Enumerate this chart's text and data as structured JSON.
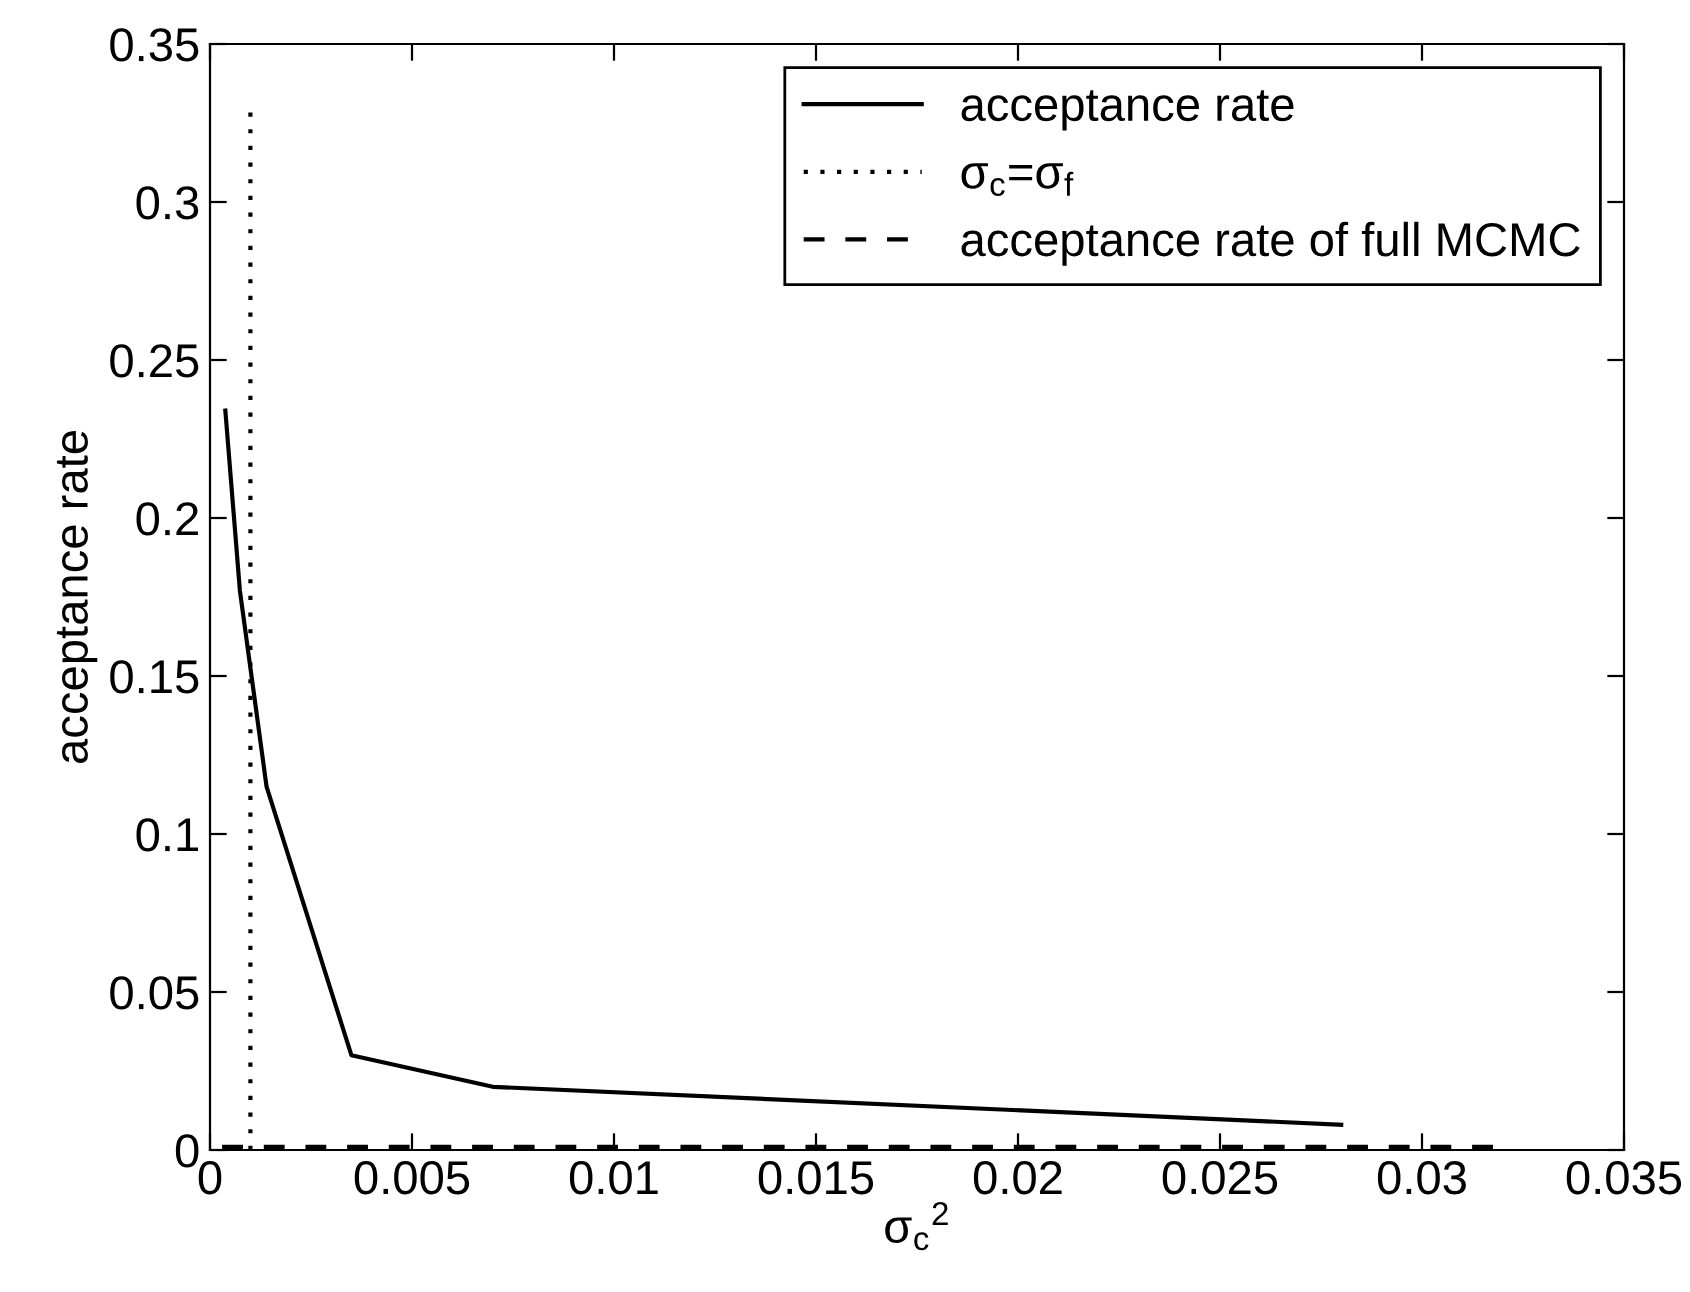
{
  "chart_data": {
    "type": "line",
    "xlabel": "σ$_{c}$$^{2}$",
    "ylabel": "acceptance rate",
    "series": [
      {
        "name": "acceptance rate",
        "color": "#000000",
        "line_style": "solid",
        "x": [
          0.00038,
          0.00074,
          0.0014,
          0.0035,
          0.007,
          0.028
        ],
        "values": [
          0.234,
          0.177,
          0.115,
          0.03,
          0.02,
          0.008
        ]
      },
      {
        "name": "σ$_{c}$=σ$_{f}$",
        "color": "#000000",
        "line_style": "dotted",
        "x": [
          0.001,
          0.001
        ],
        "values": [
          0,
          0.33
        ]
      },
      {
        "name": "acceptance rate of full MCMC",
        "color": "#000000",
        "line_style": "dashed",
        "x": [
          0.0003,
          0.032
        ],
        "values": [
          0.001,
          0.001
        ]
      }
    ],
    "xlim": [
      0,
      0.035
    ],
    "xticks": [
      0,
      0.005,
      0.01,
      0.015,
      0.02,
      0.025,
      0.03,
      0.035
    ],
    "ylim": [
      0,
      0.35
    ],
    "yticks": [
      0,
      0.05,
      0.1,
      0.15,
      0.2,
      0.25,
      0.3,
      0.35
    ],
    "grid": false,
    "legend": "top right"
  }
}
